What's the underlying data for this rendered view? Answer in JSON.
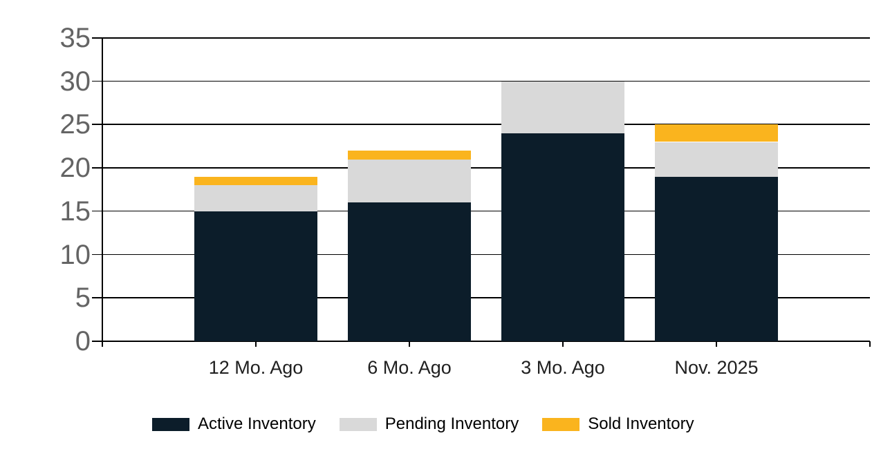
{
  "chart_data": {
    "type": "bar",
    "stacked": true,
    "title": "",
    "xlabel": "",
    "ylabel": "",
    "categories": [
      "12 Mo. Ago",
      "6 Mo. Ago",
      "3 Mo. Ago",
      "Nov. 2025"
    ],
    "series": [
      {
        "name": "Active Inventory",
        "color": "#0c1d2a",
        "values": [
          15,
          16,
          24,
          19
        ]
      },
      {
        "name": "Pending Inventory",
        "color": "#d9d9d9",
        "values": [
          3,
          5,
          6,
          4
        ]
      },
      {
        "name": "Sold Inventory",
        "color": "#fab41e",
        "values": [
          1,
          1,
          0,
          2
        ]
      }
    ],
    "stack_totals": [
      19,
      22,
      30,
      25
    ],
    "ylim": [
      0,
      35
    ],
    "y_ticks": [
      0,
      5,
      10,
      15,
      20,
      25,
      30,
      35
    ],
    "grid": true,
    "legend_position": "bottom"
  },
  "colors": {
    "background": "#ffffff",
    "gridline": "#000000",
    "axis": "#000000",
    "y_tick_label": "#646464",
    "x_tick_label": "#1f1f1f",
    "legend_text": "#000000"
  }
}
